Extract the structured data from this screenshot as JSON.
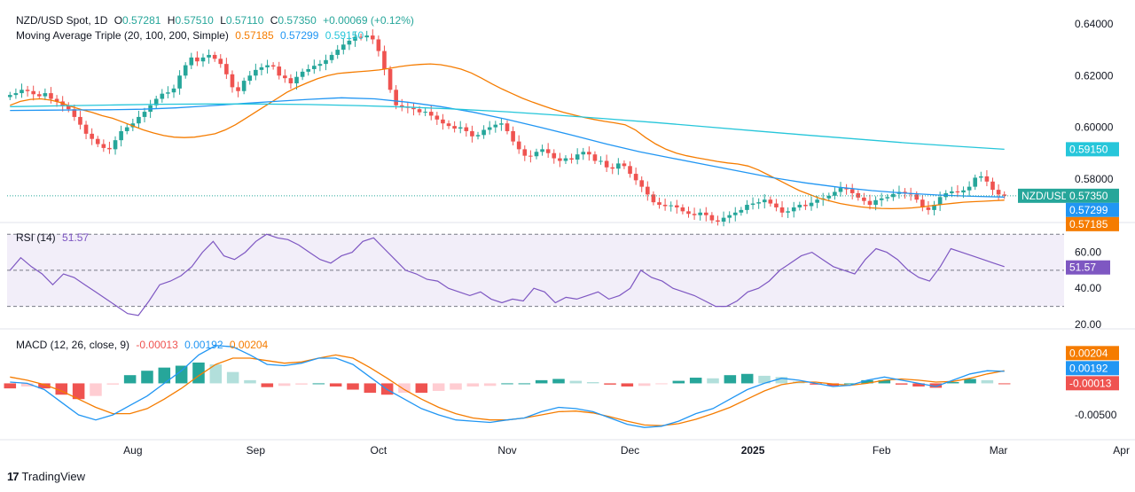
{
  "colors": {
    "up": "#26a69a",
    "down": "#ef5350",
    "ma20": "#f57c00",
    "ma100": "#2196f3",
    "ma200": "#26c6da",
    "rsi": "#7e57c2",
    "macd": "#2196f3",
    "signal": "#f57c00",
    "hist_up_strong": "#26a69a",
    "hist_up_weak": "#b2dfdb",
    "hist_dn_strong": "#ef5350",
    "hist_dn_weak": "#ffcdd2"
  },
  "header": {
    "symbol": "NZD/USD Spot, 1D",
    "open_label": "O",
    "open": "0.57281",
    "high_label": "H",
    "high": "0.57510",
    "low_label": "L",
    "low": "0.57110",
    "close_label": "C",
    "close": "0.57350",
    "change": "+0.00069 (+0.12%)",
    "ma_title": "Moving Average Triple (20, 100, 200, Simple)",
    "ma20": "0.57185",
    "ma100": "0.57299",
    "ma200": "0.59150"
  },
  "rsi_header": {
    "title": "RSI (14)",
    "value": "51.57"
  },
  "macd_header": {
    "title": "MACD (12, 26, close, 9)",
    "hist": "-0.00013",
    "macd": "0.00192",
    "signal": "0.00204"
  },
  "price_axis": {
    "ticks": [
      "0.64000",
      "0.62000",
      "0.60000",
      "0.58000"
    ],
    "tick_values": [
      0.64,
      0.62,
      0.6,
      0.58
    ],
    "range": [
      0.5635,
      0.6465
    ]
  },
  "price_badges": {
    "ma200": "0.59150",
    "symbol": "NZD/USD",
    "last": "0.57350",
    "ma100": "0.57299",
    "ma20": "0.57185"
  },
  "rsi_axis": {
    "ticks": [
      "60.00",
      "40.00",
      "20.00"
    ],
    "tick_values": [
      60,
      40,
      20
    ],
    "range": [
      18,
      76
    ],
    "bands": [
      70,
      50,
      30
    ],
    "badge": "51.57"
  },
  "macd_axis": {
    "ticks": [
      "-0.00500"
    ],
    "tick_values": [
      -0.005
    ],
    "range": [
      -0.0088,
      0.0085
    ],
    "badges": {
      "signal": "0.00204",
      "macd": "0.00192",
      "hist": "-0.00013"
    }
  },
  "time_axis": {
    "labels": [
      "Aug",
      "Sep",
      "Oct",
      "Nov",
      "Dec",
      "2025",
      "Feb",
      "Mar",
      "Apr"
    ],
    "label_index": [
      21,
      42,
      63,
      85,
      106,
      127,
      149,
      169,
      190
    ]
  },
  "footer": {
    "brand": "TradingView"
  },
  "chart_data": [
    {
      "type": "candlestick",
      "title": "NZD/USD Spot, 1D",
      "note_sampling": "daily sessions, values estimated from chart",
      "close": [
        0.6125,
        0.6132,
        0.6145,
        0.614,
        0.6128,
        0.612,
        0.6132,
        0.611,
        0.61,
        0.6085,
        0.607,
        0.604,
        0.601,
        0.5975,
        0.5955,
        0.5935,
        0.592,
        0.5915,
        0.595,
        0.5985,
        0.6,
        0.6015,
        0.604,
        0.606,
        0.6085,
        0.611,
        0.613,
        0.6135,
        0.615,
        0.62,
        0.624,
        0.627,
        0.6255,
        0.627,
        0.628,
        0.6265,
        0.6245,
        0.6205,
        0.6155,
        0.614,
        0.618,
        0.62,
        0.6222,
        0.6232,
        0.624,
        0.6235,
        0.62,
        0.619,
        0.617,
        0.6195,
        0.6215,
        0.6225,
        0.6238,
        0.6245,
        0.626,
        0.628,
        0.63,
        0.632,
        0.6335,
        0.635,
        0.6348,
        0.6355,
        0.634,
        0.6295,
        0.6225,
        0.6145,
        0.6085,
        0.608,
        0.6075,
        0.607,
        0.6058,
        0.606,
        0.6045,
        0.603,
        0.6015,
        0.6005,
        0.5995,
        0.6,
        0.5985,
        0.5965,
        0.597,
        0.599,
        0.6,
        0.601,
        0.6015,
        0.5985,
        0.5945,
        0.5915,
        0.589,
        0.5888,
        0.5905,
        0.5915,
        0.59,
        0.588,
        0.587,
        0.588,
        0.5875,
        0.5895,
        0.5905,
        0.5895,
        0.587,
        0.587,
        0.5845,
        0.584,
        0.586,
        0.585,
        0.582,
        0.5795,
        0.577,
        0.574,
        0.571,
        0.57,
        0.5695,
        0.5698,
        0.569,
        0.5675,
        0.5665,
        0.566,
        0.567,
        0.566,
        0.564,
        0.5635,
        0.565,
        0.566,
        0.567,
        0.568,
        0.57,
        0.5705,
        0.571,
        0.572,
        0.5705,
        0.569,
        0.567,
        0.5675,
        0.569,
        0.57,
        0.5695,
        0.5708,
        0.572,
        0.5725,
        0.5735,
        0.575,
        0.5765,
        0.576,
        0.5745,
        0.5728,
        0.5715,
        0.57,
        0.5718,
        0.5725,
        0.573,
        0.5742,
        0.575,
        0.5745,
        0.574,
        0.572,
        0.569,
        0.568,
        0.57,
        0.573,
        0.5745,
        0.5752,
        0.5748,
        0.5756,
        0.577,
        0.5805,
        0.581,
        0.579,
        0.5758,
        0.574,
        0.5735
      ]
    },
    {
      "type": "line",
      "title": "Moving Average Triple (20, 100, 200, Simple)",
      "series": [
        {
          "name": "MA 20",
          "values": [
            0.6085,
            0.61,
            0.6108,
            0.611,
            0.6105,
            0.6095,
            0.608,
            0.6068,
            0.6058,
            0.6045,
            0.6035,
            0.602,
            0.6005,
            0.599,
            0.5978,
            0.5968,
            0.5962,
            0.596,
            0.5962,
            0.5968,
            0.5975,
            0.599,
            0.601,
            0.6035,
            0.606,
            0.6085,
            0.611,
            0.6135,
            0.6155,
            0.6172,
            0.6188,
            0.62,
            0.6208,
            0.6212,
            0.6215,
            0.6218,
            0.6222,
            0.6228,
            0.6235,
            0.624,
            0.6243,
            0.6245,
            0.6242,
            0.6235,
            0.6225,
            0.621,
            0.619,
            0.6168,
            0.6148,
            0.613,
            0.6112,
            0.6097,
            0.6083,
            0.607,
            0.6058,
            0.6048,
            0.6038,
            0.603,
            0.6023,
            0.6017,
            0.601,
            0.599,
            0.596,
            0.5935,
            0.5915,
            0.59,
            0.589,
            0.5882,
            0.5875,
            0.5868,
            0.5862,
            0.5858,
            0.585,
            0.5835,
            0.5815,
            0.5795,
            0.5775,
            0.5755,
            0.574,
            0.5725,
            0.5715,
            0.5705,
            0.5698,
            0.5692,
            0.5688,
            0.5686,
            0.5685,
            0.5686,
            0.5688,
            0.5692,
            0.5697,
            0.5702,
            0.5706,
            0.571,
            0.5712,
            0.5714,
            0.5716,
            0.5718
          ]
        },
        {
          "name": "MA 100",
          "values": [
            0.6065,
            0.6066,
            0.6067,
            0.6068,
            0.607,
            0.6075,
            0.6083,
            0.6092,
            0.61,
            0.6108,
            0.6114,
            0.611,
            0.6097,
            0.608,
            0.6058,
            0.603,
            0.6,
            0.5968,
            0.5935,
            0.5905,
            0.588,
            0.5855,
            0.583,
            0.5805,
            0.5785,
            0.5768,
            0.5755,
            0.5745,
            0.5738,
            0.5733,
            0.573
          ]
        },
        {
          "name": "MA 200",
          "values": [
            0.608,
            0.6083,
            0.6086,
            0.6089,
            0.609,
            0.609,
            0.6088,
            0.6084,
            0.6078,
            0.607,
            0.606,
            0.6047,
            0.6033,
            0.6018,
            0.6002,
            0.5986,
            0.597,
            0.5955,
            0.594,
            0.5927,
            0.5915
          ]
        }
      ]
    },
    {
      "type": "line",
      "title": "RSI (14)",
      "series": [
        {
          "name": "RSI",
          "values": [
            50,
            57,
            52,
            48,
            42,
            48,
            46,
            42,
            38,
            34,
            30,
            26,
            25,
            33,
            42,
            44,
            47,
            52,
            60,
            66,
            58,
            56,
            60,
            66,
            70,
            68,
            67,
            64,
            60,
            56,
            54,
            58,
            60,
            66,
            68,
            62,
            56,
            50,
            48,
            45,
            44,
            40,
            38,
            36,
            38,
            34,
            32,
            34,
            33,
            40,
            38,
            32,
            35,
            34,
            36,
            38,
            34,
            36,
            40,
            50,
            46,
            44,
            40,
            38,
            36,
            33,
            30,
            30,
            33,
            38,
            40,
            44,
            50,
            54,
            58,
            60,
            56,
            52,
            50,
            48,
            56,
            62,
            60,
            56,
            50,
            46,
            44,
            52,
            62,
            60,
            58,
            56,
            54,
            52
          ]
        }
      ]
    },
    {
      "type": "line",
      "title": "MACD (12, 26, close, 9)",
      "series": [
        {
          "name": "MACD",
          "values": [
            0.0002,
            0.0,
            -0.001,
            -0.003,
            -0.005,
            -0.0058,
            -0.005,
            -0.0035,
            -0.002,
            0.0,
            0.002,
            0.0045,
            0.006,
            0.0058,
            0.0045,
            0.003,
            0.0028,
            0.0032,
            0.004,
            0.004,
            0.003,
            0.001,
            -0.001,
            -0.0025,
            -0.004,
            -0.005,
            -0.0058,
            -0.006,
            -0.0062,
            -0.0058,
            -0.0055,
            -0.0045,
            -0.0038,
            -0.004,
            -0.0045,
            -0.0055,
            -0.0065,
            -0.007,
            -0.0068,
            -0.006,
            -0.0048,
            -0.004,
            -0.0025,
            -0.001,
            0.0,
            0.0008,
            0.0005,
            0.0,
            -0.0005,
            -0.0003,
            0.0005,
            0.001,
            0.0005,
            0.0,
            -0.0005,
            0.0005,
            0.0015,
            0.002,
            0.0019
          ]
        },
        {
          "name": "Signal",
          "values": [
            0.001,
            0.0005,
            -0.0002,
            -0.0012,
            -0.0025,
            -0.0038,
            -0.0048,
            -0.0048,
            -0.004,
            -0.0025,
            -0.0008,
            0.0012,
            0.003,
            0.004,
            0.004,
            0.0036,
            0.0032,
            0.0034,
            0.004,
            0.0045,
            0.004,
            0.0025,
            0.0008,
            -0.001,
            -0.0025,
            -0.0038,
            -0.0048,
            -0.0055,
            -0.0058,
            -0.0058,
            -0.0055,
            -0.005,
            -0.0045,
            -0.0044,
            -0.0047,
            -0.0053,
            -0.006,
            -0.0066,
            -0.0067,
            -0.0064,
            -0.0057,
            -0.0048,
            -0.0038,
            -0.0025,
            -0.0012,
            -0.0002,
            0.0002,
            0.0002,
            -0.0001,
            -0.0003,
            0.0,
            0.0005,
            0.0007,
            0.0005,
            0.0002,
            0.0003,
            0.0008,
            0.0015,
            0.002
          ]
        }
      ]
    }
  ]
}
